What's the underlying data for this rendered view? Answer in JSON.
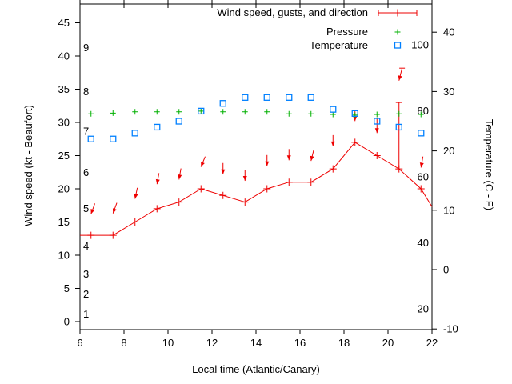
{
  "axis_titles": {
    "y_left": "Wind speed (kt - Beaufort)",
    "y_right": "Temperature (C - F)",
    "x": "Local time (Atlantic/Canary)"
  },
  "legend": {
    "wind_label": "Wind speed, gusts, and direction",
    "pressure_label": "Pressure",
    "temperature_label": "Temperature"
  },
  "colors": {
    "wind": "#ee0000",
    "pressure": "#00b000",
    "temperature": "#0080ff",
    "axis": "#000000"
  },
  "chart_data": {
    "type": "line",
    "title": "",
    "xlabel": "Local time (Atlantic/Canary)",
    "ylabel_left": "Wind speed (kt - Beaufort)",
    "ylabel_right": "Temperature (C - F)",
    "x_range": [
      6,
      22
    ],
    "x_ticks": [
      6,
      8,
      10,
      12,
      14,
      16,
      18,
      20,
      22
    ],
    "y_left_range_kt": [
      0,
      45
    ],
    "y_left_ticks": [
      0,
      5,
      10,
      15,
      20,
      25,
      30,
      35,
      40,
      45
    ],
    "y_right_range_c": [
      -10,
      40
    ],
    "y_right_ticks": [
      -10,
      0,
      10,
      20,
      30,
      40
    ],
    "beaufort_inner_labels": [
      {
        "beaufort": 1,
        "kt": 1.1
      },
      {
        "beaufort": 2,
        "kt": 4.1
      },
      {
        "beaufort": 3,
        "kt": 7.1
      },
      {
        "beaufort": 4,
        "kt": 11.3
      },
      {
        "beaufort": 5,
        "kt": 17.0
      },
      {
        "beaufort": 6,
        "kt": 22.4
      },
      {
        "beaufort": 7,
        "kt": 28.6
      },
      {
        "beaufort": 8,
        "kt": 34.6
      },
      {
        "beaufort": 9,
        "kt": 41.2
      }
    ],
    "fahrenheit_inner_labels": [
      20,
      40,
      60,
      80,
      100
    ],
    "grid": false,
    "legend_position": "top-right-inside",
    "series": {
      "wind_speed_kt": {
        "x": [
          6,
          6.5,
          7.5,
          8.5,
          9.5,
          10.5,
          11.5,
          12.5,
          13.5,
          14.5,
          15.5,
          16.5,
          17.5,
          18.5,
          19.5,
          20.5,
          21.5,
          22
        ],
        "y": [
          13,
          13,
          13,
          15,
          17,
          18,
          20,
          19,
          18,
          20,
          21,
          21,
          23,
          27,
          25,
          23,
          20,
          17.3
        ],
        "markers_on": [
          6.5,
          7.5,
          8.5,
          9.5,
          10.5,
          11.5,
          12.5,
          13.5,
          14.5,
          15.5,
          16.5,
          17.5,
          18.5,
          19.5,
          20.5,
          21.5
        ]
      },
      "wind_direction_arrows": [
        {
          "x": 6.5,
          "tip_kt": 16.2,
          "angle_deg": 20
        },
        {
          "x": 7.5,
          "tip_kt": 16.3,
          "angle_deg": 20
        },
        {
          "x": 8.5,
          "tip_kt": 18.5,
          "angle_deg": 12
        },
        {
          "x": 9.5,
          "tip_kt": 20.7,
          "angle_deg": 10
        },
        {
          "x": 10.5,
          "tip_kt": 21.4,
          "angle_deg": 10
        },
        {
          "x": 11.5,
          "tip_kt": 23.3,
          "angle_deg": 22
        },
        {
          "x": 12.5,
          "tip_kt": 22.2,
          "angle_deg": 0
        },
        {
          "x": 13.5,
          "tip_kt": 21.2,
          "angle_deg": 0
        },
        {
          "x": 14.5,
          "tip_kt": 23.4,
          "angle_deg": 0
        },
        {
          "x": 15.5,
          "tip_kt": 24.3,
          "angle_deg": 0
        },
        {
          "x": 16.5,
          "tip_kt": 24.2,
          "angle_deg": 14
        },
        {
          "x": 17.5,
          "tip_kt": 26.4,
          "angle_deg": 0
        },
        {
          "x": 18.5,
          "tip_kt": 30.2,
          "angle_deg": 0
        },
        {
          "x": 19.5,
          "tip_kt": 28.4,
          "angle_deg": 0,
          "len": 18
        },
        {
          "x": 20.5,
          "tip_kt": 36.3,
          "angle_deg": 14,
          "len": 16,
          "tail_cross": true
        },
        {
          "x": 21.5,
          "tip_kt": 23.2,
          "angle_deg": 10
        }
      ],
      "gust_bar": {
        "x": 20.5,
        "from_kt": 23,
        "to_kt": 33
      },
      "pressure_marker_kt_scale": {
        "note": "pressure axis not shown; marker heights in left-axis kt units",
        "x": [
          6.5,
          7.5,
          8.5,
          9.5,
          10.5,
          11.5,
          12.5,
          13.5,
          14.5,
          15.5,
          16.5,
          17.5,
          18.5,
          19.5,
          20.5,
          21.5
        ],
        "y": [
          31.3,
          31.4,
          31.6,
          31.6,
          31.6,
          31.7,
          31.6,
          31.6,
          31.6,
          31.3,
          31.3,
          31.2,
          31.1,
          31.2,
          31.3,
          31.2
        ]
      },
      "temperature_c": {
        "x": [
          6.5,
          7.5,
          8.5,
          9.5,
          10.5,
          11.5,
          12.5,
          13.5,
          14.5,
          15.5,
          16.5,
          17.5,
          18.5,
          19.5,
          20.5,
          21.5
        ],
        "y": [
          22,
          22,
          23,
          24,
          25,
          26.7,
          28,
          29,
          29,
          29,
          29,
          27,
          26.3,
          25,
          24,
          23
        ]
      }
    }
  }
}
